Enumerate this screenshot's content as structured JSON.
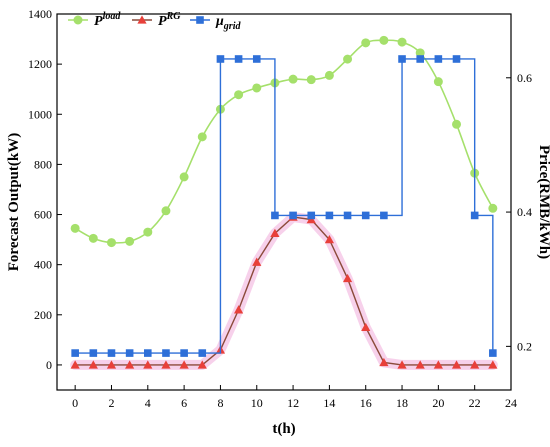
{
  "chart_data": {
    "type": "line",
    "title": "",
    "xlabel": "t(h)",
    "ylabel_left": "Forecast Output(kW)",
    "ylabel_right": "Price(RMB/kWh)",
    "xlim": [
      -1,
      24
    ],
    "ylim_left": [
      -100,
      1400
    ],
    "ylim_right": [
      0.135,
      0.695
    ],
    "xticks": [
      0,
      2,
      4,
      6,
      8,
      10,
      12,
      14,
      16,
      18,
      20,
      22,
      24
    ],
    "yticks_left": [
      0,
      200,
      400,
      600,
      800,
      1000,
      1200,
      1400
    ],
    "yticks_right": [
      0.2,
      0.4,
      0.6
    ],
    "legend_position": "top",
    "x": [
      0,
      1,
      2,
      3,
      4,
      5,
      6,
      7,
      8,
      9,
      10,
      11,
      12,
      13,
      14,
      15,
      16,
      17,
      18,
      19,
      20,
      21,
      22,
      23
    ],
    "series": [
      {
        "name": "P",
        "name_sup": "load",
        "axis": "left",
        "color": "#a5e06b",
        "marker": "circle",
        "values": [
          545,
          505,
          488,
          493,
          530,
          615,
          750,
          910,
          1020,
          1078,
          1105,
          1125,
          1140,
          1138,
          1155,
          1220,
          1285,
          1295,
          1288,
          1245,
          1130,
          960,
          765,
          625
        ]
      },
      {
        "name": "P",
        "name_sup": "RG",
        "axis": "left",
        "color": "#e8403a",
        "line_color": "#8b4a3a",
        "marker": "triangle",
        "values": [
          0,
          0,
          0,
          0,
          0,
          0,
          0,
          0,
          60,
          220,
          410,
          525,
          590,
          580,
          500,
          345,
          150,
          10,
          0,
          0,
          0,
          0,
          0,
          0
        ]
      },
      {
        "name": "μ",
        "name_sub": "grid",
        "axis": "right",
        "color": "#2e6fd8",
        "marker": "square",
        "values": [
          0.19,
          0.19,
          0.19,
          0.19,
          0.19,
          0.19,
          0.19,
          0.19,
          0.628,
          0.628,
          0.628,
          0.395,
          0.395,
          0.395,
          0.395,
          0.395,
          0.395,
          0.395,
          0.628,
          0.628,
          0.628,
          0.628,
          0.395,
          0.19
        ]
      }
    ]
  }
}
